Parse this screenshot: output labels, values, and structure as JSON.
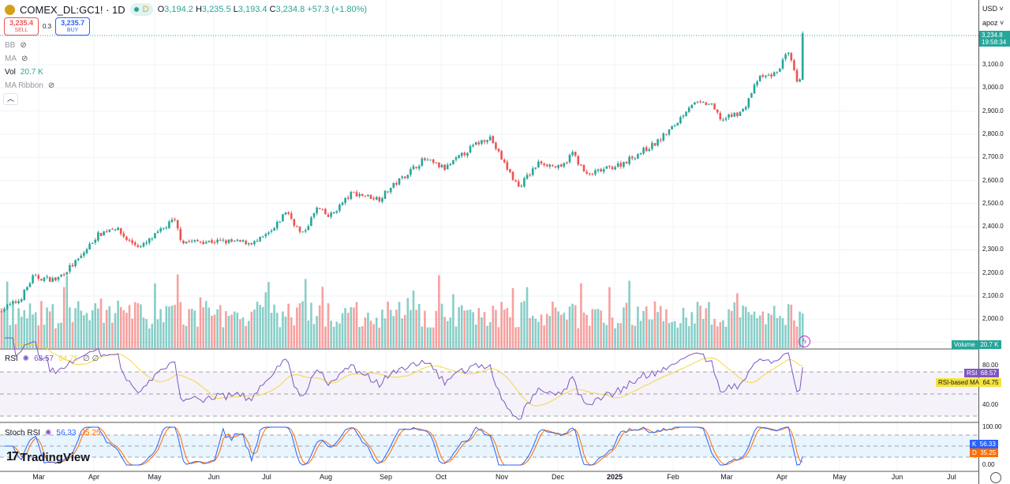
{
  "header": {
    "symbol": "COMEX_DL:GC1! · 1D",
    "market_status": "D",
    "open_label": "O",
    "open": "3,194.2",
    "high_label": "H",
    "high": "3,235.5",
    "low_label": "L",
    "low": "3,193.4",
    "close_label": "C",
    "close": "3,234.8",
    "change": "+57.3 (+1.80%)"
  },
  "trade": {
    "sell_price": "3,235.4",
    "sell_label": "SELL",
    "spread": "0.3",
    "buy_price": "3,235.7",
    "buy_label": "BUY"
  },
  "indicators": [
    {
      "name": "BB"
    },
    {
      "name": "MA"
    },
    {
      "name": "Vol",
      "value": "20.7 K"
    },
    {
      "name": "MA Ribbon"
    }
  ],
  "axis": {
    "currency": "USD",
    "unit": "apoz",
    "last_price": "3,234.8",
    "countdown": "19:58:34",
    "price_labels": [
      "3,100.0",
      "3,000.0",
      "2,900.0",
      "2,800.0",
      "2,700.0",
      "2,600.0",
      "2,500.0",
      "2,400.0",
      "2,300.0",
      "2,200.0",
      "2,100.0",
      "2,000.0"
    ],
    "volume_tag": "Volume",
    "volume_value": "20.7 K",
    "rsi_labels": [
      "80.00",
      "40.00"
    ],
    "rsi_tag": "RSI",
    "rsi_value": "68.57",
    "rsi_ma_tag": "RSI-based MA",
    "rsi_ma_value": "64.75",
    "stoch_labels": [
      "100.00",
      "0.00"
    ],
    "k_tag": "K",
    "k_value": "56.33",
    "d_tag": "D",
    "d_value": "35.25"
  },
  "rsi_pane": {
    "title": "RSI",
    "value": "68.57",
    "ma_value": "64.75"
  },
  "stoch_pane": {
    "title": "Stoch RSI",
    "k": "56.33",
    "d": "35.25"
  },
  "time_labels": [
    "Mar",
    "Apr",
    "May",
    "Jun",
    "Jul",
    "Aug",
    "Sep",
    "Oct",
    "Nov",
    "Dec",
    "2025",
    "Feb",
    "Mar",
    "Apr",
    "May",
    "Jun",
    "Jul"
  ],
  "brand": "TradingView",
  "colors": {
    "up": "#26a69a",
    "down": "#ef5350",
    "rsi": "#7e57c2",
    "rsi_ma": "#f5d742",
    "k": "#2962ff",
    "d": "#ff6d00"
  },
  "chart_data": {
    "type": "candlestick",
    "price_path": [
      [
        "2024-02-20",
        2040
      ],
      [
        "2024-03-01",
        2080
      ],
      [
        "2024-03-08",
        2180
      ],
      [
        "2024-03-20",
        2170
      ],
      [
        "2024-04-01",
        2260
      ],
      [
        "2024-04-10",
        2360
      ],
      [
        "2024-04-19",
        2400
      ],
      [
        "2024-04-26",
        2340
      ],
      [
        "2024-05-03",
        2310
      ],
      [
        "2024-05-20",
        2430
      ],
      [
        "2024-05-24",
        2335
      ],
      [
        "2024-06-14",
        2335
      ],
      [
        "2024-07-01",
        2330
      ],
      [
        "2024-07-10",
        2380
      ],
      [
        "2024-07-17",
        2470
      ],
      [
        "2024-07-25",
        2360
      ],
      [
        "2024-08-02",
        2480
      ],
      [
        "2024-08-08",
        2440
      ],
      [
        "2024-08-20",
        2545
      ],
      [
        "2024-09-03",
        2520
      ],
      [
        "2024-09-12",
        2590
      ],
      [
        "2024-09-26",
        2690
      ],
      [
        "2024-10-07",
        2650
      ],
      [
        "2024-10-22",
        2750
      ],
      [
        "2024-10-30",
        2790
      ],
      [
        "2024-11-06",
        2680
      ],
      [
        "2024-11-14",
        2570
      ],
      [
        "2024-11-25",
        2680
      ],
      [
        "2024-12-06",
        2650
      ],
      [
        "2024-12-12",
        2720
      ],
      [
        "2024-12-19",
        2620
      ],
      [
        "2025-01-06",
        2670
      ],
      [
        "2025-01-24",
        2760
      ],
      [
        "2025-02-03",
        2840
      ],
      [
        "2025-02-11",
        2930
      ],
      [
        "2025-02-21",
        2930
      ],
      [
        "2025-02-27",
        2860
      ],
      [
        "2025-03-10",
        2900
      ],
      [
        "2025-03-18",
        3040
      ],
      [
        "2025-03-27",
        3060
      ],
      [
        "2025-04-02",
        3150
      ],
      [
        "2025-04-04",
        3110
      ],
      [
        "2025-04-08",
        2990
      ],
      [
        "2025-04-10",
        3170
      ],
      [
        "2025-04-11",
        3234.8
      ]
    ],
    "ylim": [
      1900,
      3300
    ],
    "last_volume": "20.7 K"
  }
}
